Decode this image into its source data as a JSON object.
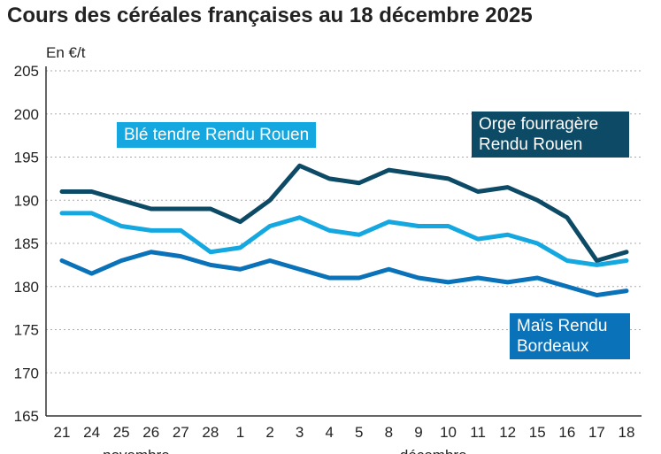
{
  "chart_data": {
    "type": "line",
    "title": "Cours des céréales françaises au 18 décembre 2025",
    "ylabel": "En €/t",
    "ylim": [
      165,
      205
    ],
    "yticks": [
      165,
      170,
      175,
      180,
      185,
      190,
      195,
      200,
      205
    ],
    "grid": true,
    "categories": [
      "21",
      "24",
      "25",
      "26",
      "27",
      "28",
      "1",
      "2",
      "3",
      "4",
      "5",
      "8",
      "9",
      "10",
      "11",
      "12",
      "15",
      "16",
      "17",
      "18"
    ],
    "month_labels": [
      {
        "label": "novembre",
        "from": "21",
        "to": "28"
      },
      {
        "label": "décembre",
        "from": "1",
        "to": "18"
      }
    ],
    "series": [
      {
        "name": "Orge fourragère Rendu Rouen",
        "color": "#0d4a66",
        "values": [
          191,
          191,
          190,
          189,
          189,
          189,
          187.5,
          190,
          194,
          192.5,
          192,
          193.5,
          193,
          192.5,
          191,
          191.5,
          190,
          188,
          183,
          184
        ]
      },
      {
        "name": "Blé tendre Rendu Rouen",
        "color": "#15a8e0",
        "values": [
          188.5,
          188.5,
          187,
          186.5,
          186.5,
          184,
          184.5,
          187,
          188,
          186.5,
          186,
          187.5,
          187,
          187,
          185.5,
          186,
          185,
          183,
          182.5,
          183
        ]
      },
      {
        "name": "Maïs Rendu Bordeaux",
        "color": "#0a72b8",
        "values": [
          183,
          181.5,
          183,
          184,
          183.5,
          182.5,
          182,
          183,
          182,
          181,
          181,
          182,
          181,
          180.5,
          181,
          180.5,
          181,
          180,
          179,
          179.5
        ]
      }
    ]
  }
}
